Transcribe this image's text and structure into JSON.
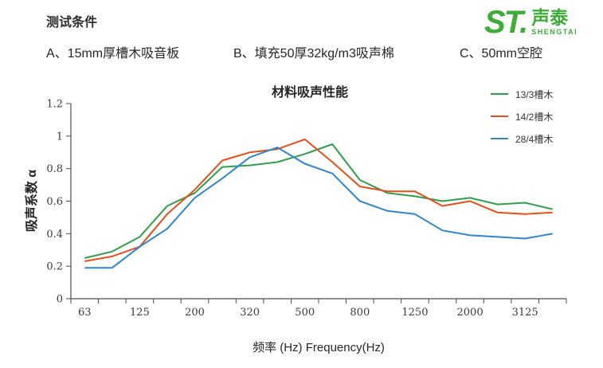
{
  "header": {
    "section_title": "测试条件",
    "condition_a": "A、15mm厚槽木吸音板",
    "condition_b": "B、填充50厚32kg/m3吸声棉",
    "condition_c": "C、50mm空腔"
  },
  "logo": {
    "st": "ST.",
    "cn": "声泰",
    "en": "SHENGTAI",
    "color": "#3cae37"
  },
  "chart_data": {
    "type": "line",
    "title": "材料吸声性能",
    "xlabel": "频率 (Hz) Frequency(Hz)",
    "ylabel": "吸声系数 α",
    "ylim": [
      0,
      1.2
    ],
    "y_ticks": [
      "0",
      "0.2",
      "0.4",
      "0.6",
      "0.8",
      "1",
      "1.2"
    ],
    "categories": [
      "63",
      "",
      "125",
      "",
      "200",
      "",
      "320",
      "",
      "500",
      "",
      "800",
      "",
      "1250",
      "",
      "2000",
      "",
      "3125",
      ""
    ],
    "grid": false,
    "legend_position": "top-right",
    "axis_color": "#4d4d4d",
    "series": [
      {
        "name": "13/3槽木",
        "color": "#2f9e4d",
        "values": [
          0.25,
          0.29,
          0.38,
          0.57,
          0.65,
          0.81,
          0.82,
          0.84,
          0.89,
          0.95,
          0.73,
          0.65,
          0.63,
          0.6,
          0.62,
          0.58,
          0.59,
          0.55
        ]
      },
      {
        "name": "14/2槽木",
        "color": "#e84e1b",
        "values": [
          0.23,
          0.26,
          0.32,
          0.52,
          0.67,
          0.85,
          0.9,
          0.92,
          0.98,
          0.84,
          0.69,
          0.66,
          0.66,
          0.57,
          0.6,
          0.53,
          0.52,
          0.53
        ]
      },
      {
        "name": "28/4槽木",
        "color": "#2e86cf",
        "values": [
          0.19,
          0.19,
          0.32,
          0.43,
          0.62,
          0.74,
          0.87,
          0.93,
          0.83,
          0.77,
          0.6,
          0.54,
          0.52,
          0.42,
          0.39,
          0.38,
          0.37,
          0.4
        ]
      }
    ]
  }
}
